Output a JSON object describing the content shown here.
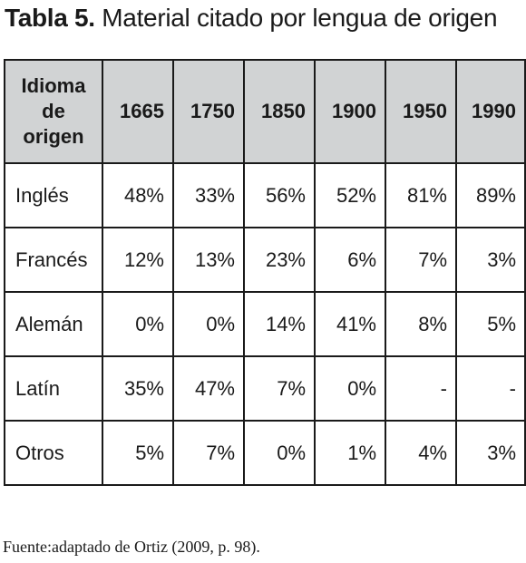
{
  "title": {
    "label": "Tabla 5.",
    "text": "Material citado por lengua de origen"
  },
  "table": {
    "header_first": "Idioma de origen",
    "years": [
      "1665",
      "1750",
      "1850",
      "1900",
      "1950",
      "1990"
    ],
    "rows": [
      {
        "language": "Inglés",
        "values": [
          "48%",
          "33%",
          "56%",
          "52%",
          "81%",
          "89%"
        ]
      },
      {
        "language": "Francés",
        "values": [
          "12%",
          "13%",
          "23%",
          "6%",
          "7%",
          "3%"
        ]
      },
      {
        "language": "Alemán",
        "values": [
          "0%",
          "0%",
          "14%",
          "41%",
          "8%",
          "5%"
        ]
      },
      {
        "language": "Latín",
        "values": [
          "35%",
          "47%",
          "7%",
          "0%",
          "-",
          "-"
        ]
      },
      {
        "language": "Otros",
        "values": [
          "5%",
          "7%",
          "0%",
          "1%",
          "4%",
          "3%"
        ]
      }
    ]
  },
  "source": "Fuente:adaptado de Ortiz (2009, p. 98)."
}
